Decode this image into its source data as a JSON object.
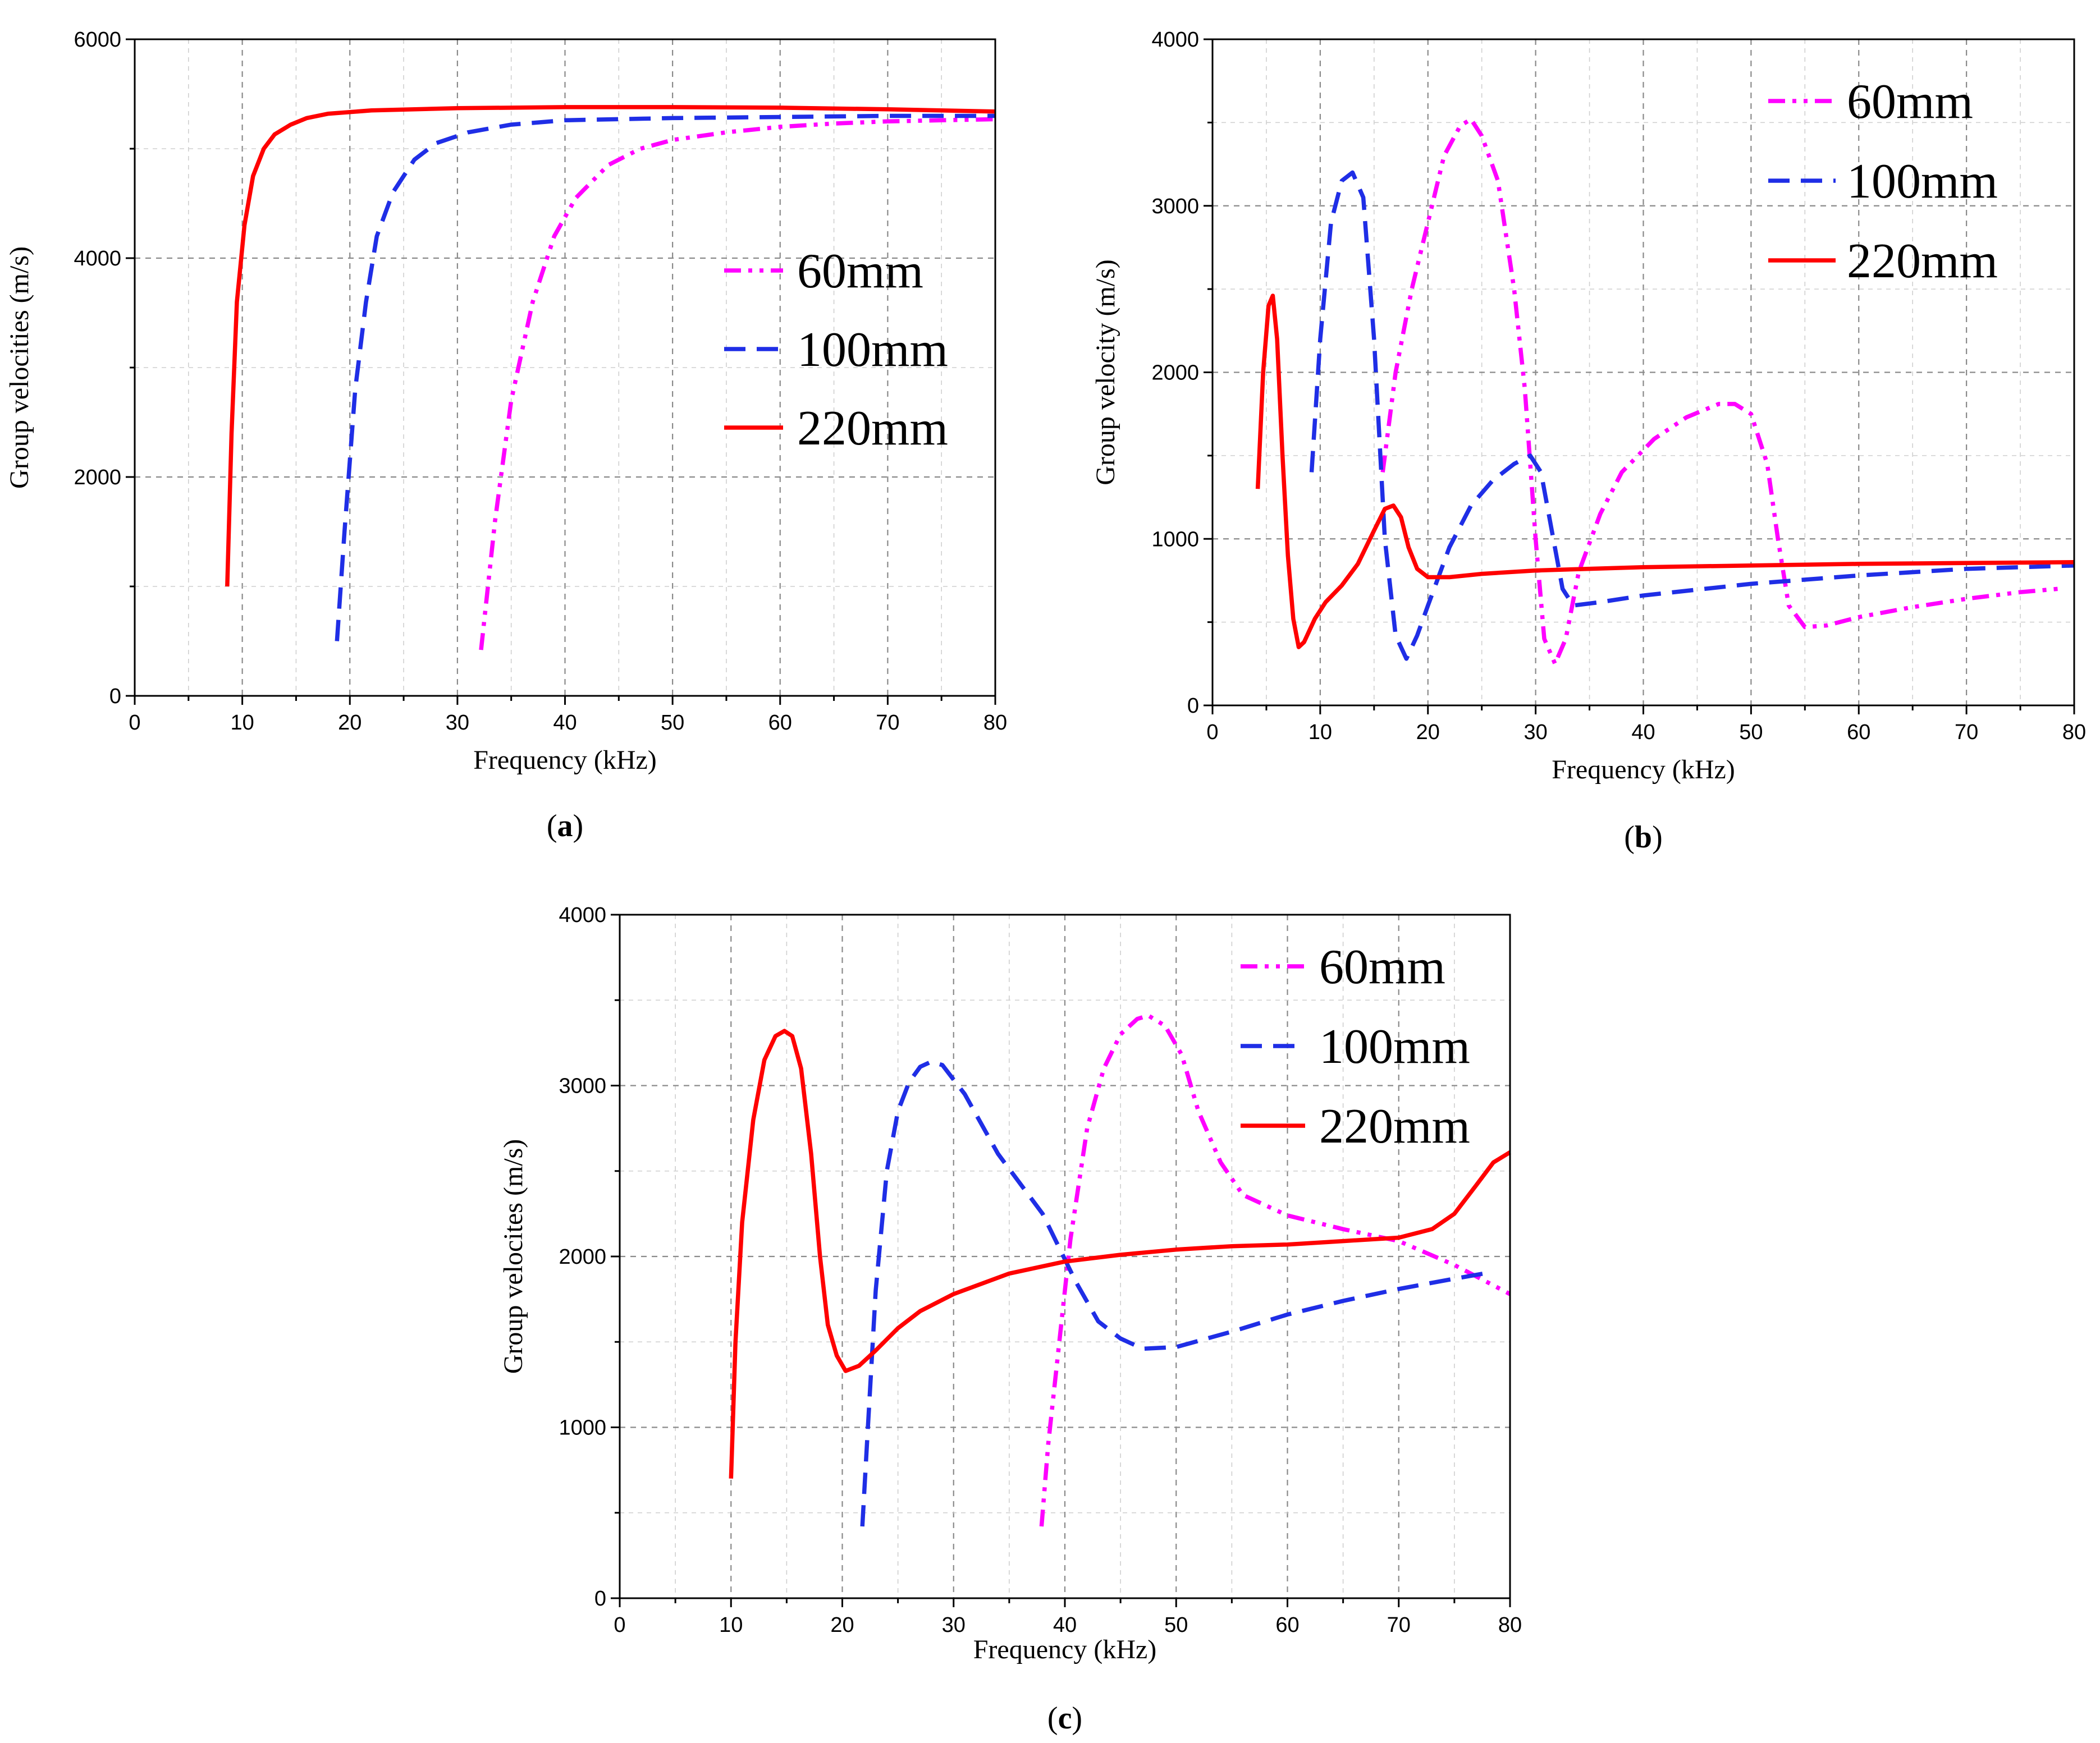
{
  "chart_data": [
    {
      "type": "line",
      "caption_letter": "a",
      "title": "",
      "xlabel": "Frequency (kHz)",
      "ylabel": "Group velocities (m/s)",
      "xlim": [
        0,
        80
      ],
      "ylim": [
        0,
        6000
      ],
      "x_ticks": [
        0,
        10,
        20,
        30,
        40,
        50,
        60,
        70,
        80
      ],
      "y_ticks": [
        0,
        2000,
        4000,
        6000
      ],
      "grid": true,
      "legend": "center-right",
      "series": [
        {
          "name": "60mm",
          "color": "#ff00ff",
          "style": "dash-dot-dot",
          "points": [
            [
              32.2,
              420
            ],
            [
              33.5,
              1600
            ],
            [
              35,
              2700
            ],
            [
              37,
              3600
            ],
            [
              39,
              4200
            ],
            [
              41,
              4550
            ],
            [
              44,
              4850
            ],
            [
              47,
              5000
            ],
            [
              50,
              5080
            ],
            [
              55,
              5150
            ],
            [
              60,
              5200
            ],
            [
              65,
              5230
            ],
            [
              70,
              5250
            ],
            [
              75,
              5260
            ],
            [
              80,
              5270
            ]
          ]
        },
        {
          "name": "100mm",
          "color": "#1f2ee6",
          "style": "dash",
          "points": [
            [
              18.8,
              500
            ],
            [
              19.5,
              1500
            ],
            [
              20.5,
              2800
            ],
            [
              21.5,
              3600
            ],
            [
              22.5,
              4200
            ],
            [
              24,
              4600
            ],
            [
              26,
              4900
            ],
            [
              28,
              5050
            ],
            [
              31,
              5150
            ],
            [
              35,
              5220
            ],
            [
              40,
              5260
            ],
            [
              50,
              5280
            ],
            [
              60,
              5290
            ],
            [
              70,
              5300
            ],
            [
              80,
              5300
            ]
          ]
        },
        {
          "name": "220mm",
          "color": "#ff0000",
          "style": "solid",
          "points": [
            [
              8.6,
              1000
            ],
            [
              9,
              2400
            ],
            [
              9.5,
              3600
            ],
            [
              10.2,
              4300
            ],
            [
              11,
              4750
            ],
            [
              12,
              5000
            ],
            [
              13,
              5130
            ],
            [
              14.5,
              5220
            ],
            [
              16,
              5280
            ],
            [
              18,
              5320
            ],
            [
              22,
              5350
            ],
            [
              30,
              5370
            ],
            [
              40,
              5380
            ],
            [
              50,
              5380
            ],
            [
              60,
              5375
            ],
            [
              70,
              5360
            ],
            [
              80,
              5340
            ]
          ]
        }
      ]
    },
    {
      "type": "line",
      "caption_letter": "b",
      "title": "",
      "xlabel": "Frequency (kHz)",
      "ylabel": "Group velocity (m/s)",
      "xlim": [
        0,
        80
      ],
      "ylim": [
        0,
        4000
      ],
      "x_ticks": [
        0,
        10,
        20,
        30,
        40,
        50,
        60,
        70,
        80
      ],
      "y_ticks": [
        0,
        1000,
        2000,
        3000,
        4000
      ],
      "grid": true,
      "legend": "top-right",
      "series": [
        {
          "name": "60mm",
          "color": "#ff00ff",
          "style": "dash-dot-dot",
          "points": [
            [
              15.8,
              1400
            ],
            [
              17,
              2000
            ],
            [
              18.5,
              2500
            ],
            [
              20,
              2900
            ],
            [
              21.5,
              3300
            ],
            [
              23,
              3480
            ],
            [
              24,
              3520
            ],
            [
              25,
              3420
            ],
            [
              26.5,
              3150
            ],
            [
              28,
              2500
            ],
            [
              29,
              1900
            ],
            [
              30,
              1000
            ],
            [
              30.8,
              400
            ],
            [
              31.8,
              250
            ],
            [
              32.8,
              400
            ],
            [
              34,
              800
            ],
            [
              36,
              1150
            ],
            [
              38,
              1400
            ],
            [
              41,
              1600
            ],
            [
              44,
              1730
            ],
            [
              47,
              1810
            ],
            [
              48.5,
              1810
            ],
            [
              50,
              1750
            ],
            [
              51.5,
              1450
            ],
            [
              52.5,
              1000
            ],
            [
              53.5,
              600
            ],
            [
              55,
              470
            ],
            [
              57,
              480
            ],
            [
              60,
              530
            ],
            [
              65,
              590
            ],
            [
              70,
              640
            ],
            [
              75,
              680
            ],
            [
              78.5,
              700
            ]
          ]
        },
        {
          "name": "100mm",
          "color": "#1f2ee6",
          "style": "dash",
          "points": [
            [
              9.2,
              1400
            ],
            [
              10,
              2200
            ],
            [
              11,
              2900
            ],
            [
              12,
              3150
            ],
            [
              13,
              3200
            ],
            [
              14,
              3050
            ],
            [
              15,
              2200
            ],
            [
              16,
              1000
            ],
            [
              17,
              420
            ],
            [
              18,
              280
            ],
            [
              19,
              420
            ],
            [
              20,
              600
            ],
            [
              22,
              950
            ],
            [
              24,
              1200
            ],
            [
              26,
              1350
            ],
            [
              28,
              1450
            ],
            [
              29.5,
              1500
            ],
            [
              30.5,
              1400
            ],
            [
              31.5,
              1050
            ],
            [
              32.5,
              700
            ],
            [
              33.5,
              600
            ],
            [
              36,
              620
            ],
            [
              40,
              660
            ],
            [
              50,
              730
            ],
            [
              60,
              780
            ],
            [
              70,
              820
            ],
            [
              80,
              840
            ]
          ]
        },
        {
          "name": "220mm",
          "color": "#ff0000",
          "style": "solid",
          "points": [
            [
              4.2,
              1300
            ],
            [
              4.7,
              2000
            ],
            [
              5.2,
              2400
            ],
            [
              5.6,
              2460
            ],
            [
              6,
              2200
            ],
            [
              6.5,
              1500
            ],
            [
              7,
              900
            ],
            [
              7.5,
              520
            ],
            [
              8,
              350
            ],
            [
              8.5,
              380
            ],
            [
              9.5,
              520
            ],
            [
              10.5,
              620
            ],
            [
              12,
              720
            ],
            [
              13.5,
              850
            ],
            [
              15,
              1050
            ],
            [
              16,
              1180
            ],
            [
              16.8,
              1200
            ],
            [
              17.5,
              1130
            ],
            [
              18.2,
              950
            ],
            [
              19,
              820
            ],
            [
              20,
              770
            ],
            [
              22,
              770
            ],
            [
              25,
              790
            ],
            [
              30,
              810
            ],
            [
              40,
              830
            ],
            [
              50,
              840
            ],
            [
              60,
              850
            ],
            [
              70,
              855
            ],
            [
              80,
              860
            ]
          ]
        }
      ]
    },
    {
      "type": "line",
      "caption_letter": "c",
      "title": "",
      "xlabel": "Frequency (kHz)",
      "ylabel": "Group velocites (m/s)",
      "xlim": [
        0,
        80
      ],
      "ylim": [
        0,
        4000
      ],
      "x_ticks": [
        0,
        10,
        20,
        30,
        40,
        50,
        60,
        70,
        80
      ],
      "y_ticks": [
        0,
        1000,
        2000,
        3000,
        4000
      ],
      "grid": true,
      "legend": "top-right",
      "series": [
        {
          "name": "60mm",
          "color": "#ff00ff",
          "style": "dash-dot-dot",
          "points": [
            [
              37.9,
              420
            ],
            [
              38.5,
              900
            ],
            [
              39.5,
              1500
            ],
            [
              40.5,
              2100
            ],
            [
              42,
              2750
            ],
            [
              43.5,
              3100
            ],
            [
              45,
              3300
            ],
            [
              46.5,
              3390
            ],
            [
              47.5,
              3410
            ],
            [
              49,
              3350
            ],
            [
              50.5,
              3180
            ],
            [
              52,
              2850
            ],
            [
              54,
              2550
            ],
            [
              56,
              2360
            ],
            [
              60,
              2240
            ],
            [
              65,
              2160
            ],
            [
              70,
              2090
            ],
            [
              75,
              1950
            ],
            [
              80,
              1780
            ]
          ]
        },
        {
          "name": "100mm",
          "color": "#1f2ee6",
          "style": "dash",
          "points": [
            [
              21.8,
              420
            ],
            [
              22.3,
              1000
            ],
            [
              23,
              1800
            ],
            [
              24,
              2500
            ],
            [
              25,
              2850
            ],
            [
              26,
              3020
            ],
            [
              27,
              3110
            ],
            [
              28,
              3140
            ],
            [
              29,
              3120
            ],
            [
              31,
              2950
            ],
            [
              34,
              2600
            ],
            [
              38,
              2250
            ],
            [
              41,
              1850
            ],
            [
              43,
              1620
            ],
            [
              45,
              1520
            ],
            [
              47,
              1460
            ],
            [
              50,
              1470
            ],
            [
              55,
              1560
            ],
            [
              60,
              1660
            ],
            [
              65,
              1740
            ],
            [
              70,
              1810
            ],
            [
              75,
              1870
            ],
            [
              78.5,
              1910
            ]
          ]
        },
        {
          "name": "220mm",
          "color": "#ff0000",
          "style": "solid",
          "points": [
            [
              10,
              700
            ],
            [
              10.4,
              1500
            ],
            [
              11,
              2200
            ],
            [
              12,
              2800
            ],
            [
              13,
              3150
            ],
            [
              14,
              3290
            ],
            [
              14.8,
              3320
            ],
            [
              15.5,
              3290
            ],
            [
              16.3,
              3100
            ],
            [
              17.2,
              2600
            ],
            [
              18,
              2000
            ],
            [
              18.7,
              1600
            ],
            [
              19.5,
              1420
            ],
            [
              20.3,
              1330
            ],
            [
              21.5,
              1360
            ],
            [
              23,
              1450
            ],
            [
              25,
              1580
            ],
            [
              27,
              1680
            ],
            [
              30,
              1780
            ],
            [
              35,
              1900
            ],
            [
              40,
              1970
            ],
            [
              45,
              2010
            ],
            [
              50,
              2040
            ],
            [
              55,
              2060
            ],
            [
              60,
              2070
            ],
            [
              65,
              2090
            ],
            [
              70,
              2110
            ],
            [
              73,
              2160
            ],
            [
              75,
              2250
            ],
            [
              77,
              2420
            ],
            [
              78.5,
              2550
            ],
            [
              80,
              2610
            ]
          ]
        }
      ]
    }
  ]
}
